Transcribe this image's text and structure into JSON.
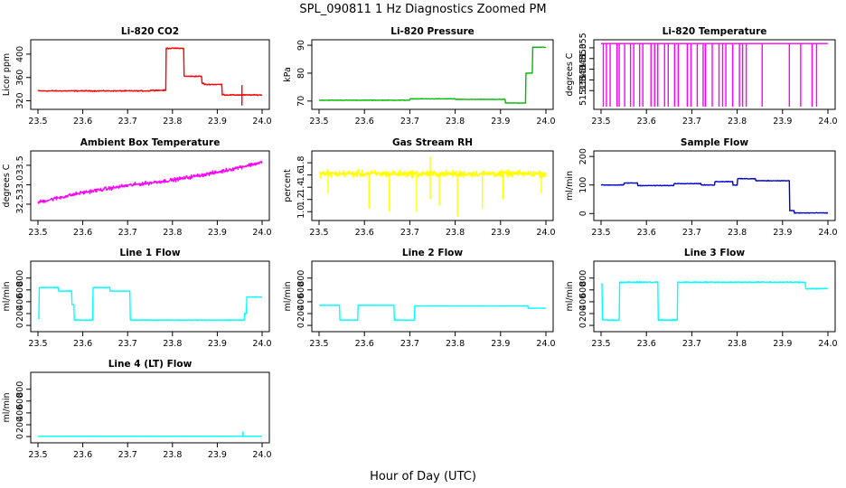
{
  "figure": {
    "title": "SPL_090811  1 Hz Diagnostics Zoomed PM",
    "xlabel": "Hour of Day (UTC)"
  },
  "chart_data": [
    {
      "id": "co2",
      "type": "line",
      "title": "Li-820 CO2",
      "ylabel": "Licor ppm",
      "color": "#ff0000",
      "xlim": [
        23.5,
        24.0
      ],
      "ylim": [
        310,
        420
      ],
      "xticks": [
        23.5,
        23.6,
        23.7,
        23.8,
        23.9,
        24.0
      ],
      "xtick_labels": [
        "23.5",
        "23.6",
        "23.7",
        "23.8",
        "23.9",
        "24.0"
      ],
      "yticks": [
        320,
        360,
        400
      ],
      "ytick_labels": [
        "320",
        "360",
        "400"
      ],
      "series": [
        {
          "name": "CO2",
          "noise": 1.2,
          "segments": [
            [
              23.5,
              23.75,
              337
            ],
            [
              23.75,
              23.785,
              338
            ],
            [
              23.785,
              23.79,
              410
            ],
            [
              23.79,
              23.825,
              410
            ],
            [
              23.825,
              23.83,
              362
            ],
            [
              23.83,
              23.865,
              362
            ],
            [
              23.865,
              23.87,
              350
            ],
            [
              23.87,
              23.91,
              348
            ],
            [
              23.91,
              23.915,
              331
            ],
            [
              23.915,
              24.0,
              330
            ]
          ],
          "spikes": [
            [
              23.955,
              312,
              347
            ]
          ]
        }
      ]
    },
    {
      "id": "pressure",
      "type": "line",
      "title": "Li-820 Pressure",
      "ylabel": "kPa",
      "color": "#00bb00",
      "xlim": [
        23.5,
        24.0
      ],
      "ylim": [
        68,
        91
      ],
      "xticks": [
        23.5,
        23.6,
        23.7,
        23.8,
        23.9,
        24.0
      ],
      "xtick_labels": [
        "23.5",
        "23.6",
        "23.7",
        "23.8",
        "23.9",
        "24.0"
      ],
      "yticks": [
        70,
        80,
        90
      ],
      "ytick_labels": [
        "70",
        "80",
        "90"
      ],
      "series": [
        {
          "name": "Pressure",
          "noise": 0.12,
          "segments": [
            [
              23.5,
              23.7,
              70.3
            ],
            [
              23.7,
              23.8,
              70.8
            ],
            [
              23.8,
              23.91,
              70.6
            ],
            [
              23.91,
              23.955,
              69.3
            ],
            [
              23.955,
              23.97,
              80.0
            ],
            [
              23.97,
              24.0,
              89.3
            ]
          ]
        }
      ]
    },
    {
      "id": "temperature",
      "type": "line",
      "title": "Li-820 Temperature",
      "ylabel": "degrees C",
      "color": "#ff00ff",
      "xlim": [
        23.5,
        24.0
      ],
      "ylim": [
        51.3275,
        51.3575
      ],
      "xticks": [
        23.5,
        23.6,
        23.7,
        23.8,
        23.9,
        24.0
      ],
      "xtick_labels": [
        "23.5",
        "23.6",
        "23.7",
        "23.8",
        "23.9",
        "24.0"
      ],
      "yticks": [
        51.335,
        51.34,
        51.345,
        51.35,
        51.355
      ],
      "ytick_labels": [
        "51.335",
        "51.340",
        "51.345",
        "51.350",
        "51.355"
      ],
      "levels": [
        51.3275,
        51.357
      ],
      "drops": [
        23.505,
        23.512,
        23.52,
        23.535,
        23.54,
        23.552,
        23.565,
        23.572,
        23.585,
        23.592,
        23.61,
        23.618,
        23.625,
        23.64,
        23.648,
        23.662,
        23.67,
        23.69,
        23.698,
        23.712,
        23.725,
        23.73,
        23.745,
        23.76,
        23.768,
        23.775,
        23.79,
        23.805,
        23.812,
        23.82,
        23.855,
        23.915,
        23.94,
        23.965,
        23.975
      ]
    },
    {
      "id": "ambient",
      "type": "line",
      "title": "Ambient Box Temperature",
      "ylabel": "degrees C",
      "color": "#ff00ff",
      "xlim": [
        23.5,
        24.0
      ],
      "ylim": [
        32.15,
        33.8
      ],
      "xticks": [
        23.5,
        23.6,
        23.7,
        23.8,
        23.9,
        24.0
      ],
      "xtick_labels": [
        "23.5",
        "23.6",
        "23.7",
        "23.8",
        "23.9",
        "24.0"
      ],
      "yticks": [
        32.5,
        33.0,
        33.5
      ],
      "ytick_labels": [
        "32.5",
        "33.0",
        "33.5"
      ],
      "series": [
        {
          "name": "Ambient",
          "noise": 0.07,
          "trend": [
            [
              23.5,
              32.55
            ],
            [
              23.6,
              32.8
            ],
            [
              23.7,
              32.98
            ],
            [
              23.8,
              33.12
            ],
            [
              23.9,
              33.32
            ],
            [
              24.0,
              33.58
            ]
          ]
        }
      ]
    },
    {
      "id": "rh",
      "type": "line",
      "title": "Gas Stream RH",
      "ylabel": "percent",
      "color": "#ffff00",
      "xlim": [
        23.5,
        24.0
      ],
      "ylim": [
        0.9,
        1.95
      ],
      "xticks": [
        23.5,
        23.6,
        23.7,
        23.8,
        23.9,
        24.0
      ],
      "xtick_labels": [
        "23.5",
        "23.6",
        "23.7",
        "23.8",
        "23.9",
        "24.0"
      ],
      "yticks": [
        1.0,
        1.2,
        1.4,
        1.6,
        1.8
      ],
      "ytick_labels": [
        "1.0",
        "1.2",
        "1.4",
        "1.6",
        "1.8"
      ],
      "series": [
        {
          "name": "RH",
          "noise": 0.08,
          "segments": [
            [
              23.5,
              24.0,
              1.62
            ]
          ],
          "spikes": [
            [
              23.52,
              1.3,
              1.7
            ],
            [
              23.61,
              1.05,
              1.6
            ],
            [
              23.655,
              1.0,
              1.6
            ],
            [
              23.715,
              1.0,
              1.6
            ],
            [
              23.745,
              1.2,
              1.9
            ],
            [
              23.765,
              1.1,
              1.6
            ],
            [
              23.805,
              0.92,
              1.6
            ],
            [
              23.86,
              1.05,
              1.6
            ],
            [
              23.905,
              1.2,
              1.6
            ],
            [
              23.99,
              1.3,
              1.6
            ]
          ]
        }
      ]
    },
    {
      "id": "sample",
      "type": "line",
      "title": "Sample Flow",
      "ylabel": "ml/min",
      "color": "#0000cc",
      "xlim": [
        23.5,
        24.0
      ],
      "ylim": [
        -15,
        210
      ],
      "xticks": [
        23.5,
        23.6,
        23.7,
        23.8,
        23.9,
        24.0
      ],
      "xtick_labels": [
        "23.5",
        "23.6",
        "23.7",
        "23.8",
        "23.9",
        "24.0"
      ],
      "yticks": [
        0,
        100,
        200
      ],
      "ytick_labels": [
        "0",
        "100",
        "200"
      ],
      "series": [
        {
          "name": "Sample",
          "noise": 1.5,
          "segments": [
            [
              23.5,
              23.55,
              100
            ],
            [
              23.55,
              23.58,
              107
            ],
            [
              23.58,
              23.66,
              98
            ],
            [
              23.66,
              23.72,
              105
            ],
            [
              23.72,
              23.75,
              100
            ],
            [
              23.75,
              23.79,
              112
            ],
            [
              23.79,
              23.8,
              100
            ],
            [
              23.8,
              23.84,
              122
            ],
            [
              23.84,
              23.915,
              115
            ],
            [
              23.915,
              23.925,
              10
            ],
            [
              23.925,
              24.0,
              2
            ]
          ]
        }
      ]
    },
    {
      "id": "line1",
      "type": "line",
      "title": "Line 1 Flow",
      "ylabel": "ml/min",
      "color": "#00ffff",
      "xlim": [
        23.5,
        24.0
      ],
      "ylim": [
        -60,
        1040
      ],
      "xticks": [
        23.5,
        23.6,
        23.7,
        23.8,
        23.9,
        24.0
      ],
      "xtick_labels": [
        "23.5",
        "23.6",
        "23.7",
        "23.8",
        "23.9",
        "24.0"
      ],
      "yticks": [
        0,
        200,
        400,
        600,
        800
      ],
      "ytick_labels": [
        "0",
        "200",
        "400",
        "600",
        "800"
      ],
      "series": [
        {
          "name": "Line 1",
          "noise": 8,
          "segments": [
            [
              23.5,
              23.502,
              120
            ],
            [
              23.502,
              23.545,
              640
            ],
            [
              23.545,
              23.575,
              580
            ],
            [
              23.575,
              23.58,
              350
            ],
            [
              23.58,
              23.622,
              90
            ],
            [
              23.622,
              23.66,
              640
            ],
            [
              23.66,
              23.705,
              580
            ],
            [
              23.705,
              23.96,
              90
            ],
            [
              23.96,
              23.965,
              200
            ],
            [
              23.965,
              24.0,
              480
            ]
          ]
        }
      ]
    },
    {
      "id": "line2",
      "type": "line",
      "title": "Line 2 Flow",
      "ylabel": "ml/min",
      "color": "#00ffff",
      "xlim": [
        23.5,
        24.0
      ],
      "ylim": [
        -60,
        1040
      ],
      "xticks": [
        23.5,
        23.6,
        23.7,
        23.8,
        23.9,
        24.0
      ],
      "xtick_labels": [
        "23.5",
        "23.6",
        "23.7",
        "23.8",
        "23.9",
        "24.0"
      ],
      "yticks": [
        0,
        200,
        400,
        600,
        800
      ],
      "ytick_labels": [
        "0",
        "200",
        "400",
        "600",
        "800"
      ],
      "series": [
        {
          "name": "Line 2",
          "noise": 4,
          "segments": [
            [
              23.5,
              23.545,
              340
            ],
            [
              23.545,
              23.585,
              90
            ],
            [
              23.585,
              23.665,
              340
            ],
            [
              23.665,
              23.71,
              90
            ],
            [
              23.71,
              23.96,
              330
            ],
            [
              23.96,
              24.0,
              290
            ]
          ]
        }
      ]
    },
    {
      "id": "line3",
      "type": "line",
      "title": "Line 3 Flow",
      "ylabel": "ml/min",
      "color": "#00ffff",
      "xlim": [
        23.5,
        24.0
      ],
      "ylim": [
        -60,
        1040
      ],
      "xticks": [
        23.5,
        23.6,
        23.7,
        23.8,
        23.9,
        24.0
      ],
      "xtick_labels": [
        "23.5",
        "23.6",
        "23.7",
        "23.8",
        "23.9",
        "24.0"
      ],
      "yticks": [
        0,
        200,
        400,
        600,
        800
      ],
      "ytick_labels": [
        "0",
        "200",
        "400",
        "600",
        "800"
      ],
      "series": [
        {
          "name": "Line 3",
          "noise": 15,
          "segments": [
            [
              23.5,
              23.502,
              700
            ],
            [
              23.502,
              23.54,
              90
            ],
            [
              23.54,
              23.625,
              730
            ],
            [
              23.625,
              23.668,
              90
            ],
            [
              23.668,
              23.95,
              730
            ],
            [
              23.95,
              24.0,
              620
            ]
          ]
        }
      ]
    },
    {
      "id": "line4",
      "type": "line",
      "title": "Line 4 (LT) Flow",
      "ylabel": "ml/min",
      "color": "#00ffff",
      "xlim": [
        23.5,
        24.0
      ],
      "ylim": [
        -60,
        1040
      ],
      "xticks": [
        23.5,
        23.6,
        23.7,
        23.8,
        23.9,
        24.0
      ],
      "xtick_labels": [
        "23.5",
        "23.6",
        "23.7",
        "23.8",
        "23.9",
        "24.0"
      ],
      "yticks": [
        0,
        200,
        400,
        600,
        800
      ],
      "ytick_labels": [
        "0",
        "200",
        "400",
        "600",
        "800"
      ],
      "series": [
        {
          "name": "Line 4",
          "noise": 1,
          "segments": [
            [
              23.5,
              24.0,
              5
            ]
          ],
          "spikes": [
            [
              23.957,
              5,
              85
            ]
          ]
        }
      ]
    }
  ]
}
